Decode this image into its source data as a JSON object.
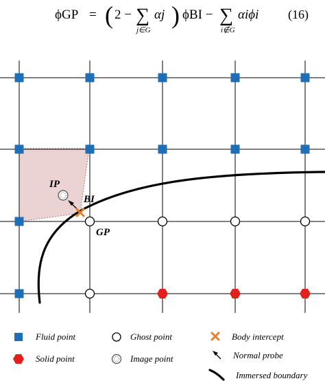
{
  "equation": {
    "lhs": "ϕGP",
    "formula_text": "ϕGP = (2 − ∑j∈G αj) ϕBI − ∑i∉G αi ϕi",
    "sum1_index": "j∈G",
    "sum2_index": "i∉G",
    "number": "(16)"
  },
  "figure": {
    "labels": {
      "ip": "IP",
      "bi": "BI",
      "gp": "GP"
    },
    "legend": [
      {
        "key": "fluid",
        "label": "Fluid point",
        "icon": "blue-square-icon"
      },
      {
        "key": "ghost",
        "label": "Ghost point",
        "icon": "open-circle-icon"
      },
      {
        "key": "body_intercept",
        "label": "Body intercept",
        "icon": "orange-x-icon"
      },
      {
        "key": "solid",
        "label": "Solid point",
        "icon": "red-hexagon-icon"
      },
      {
        "key": "image",
        "label": "Image point",
        "icon": "dotted-circle-icon"
      },
      {
        "key": "normal_probe",
        "label": "Normal probe",
        "icon": "arrow-icon"
      },
      {
        "key": "boundary",
        "label": "Immersed boundary",
        "icon": "thick-curve-icon"
      }
    ],
    "colors": {
      "fluid": "#1f6fb7",
      "solid": "#e0211c",
      "body_intercept": "#e87d2a",
      "shaded_region": "#ecd3d3",
      "grid": "#000000"
    }
  }
}
